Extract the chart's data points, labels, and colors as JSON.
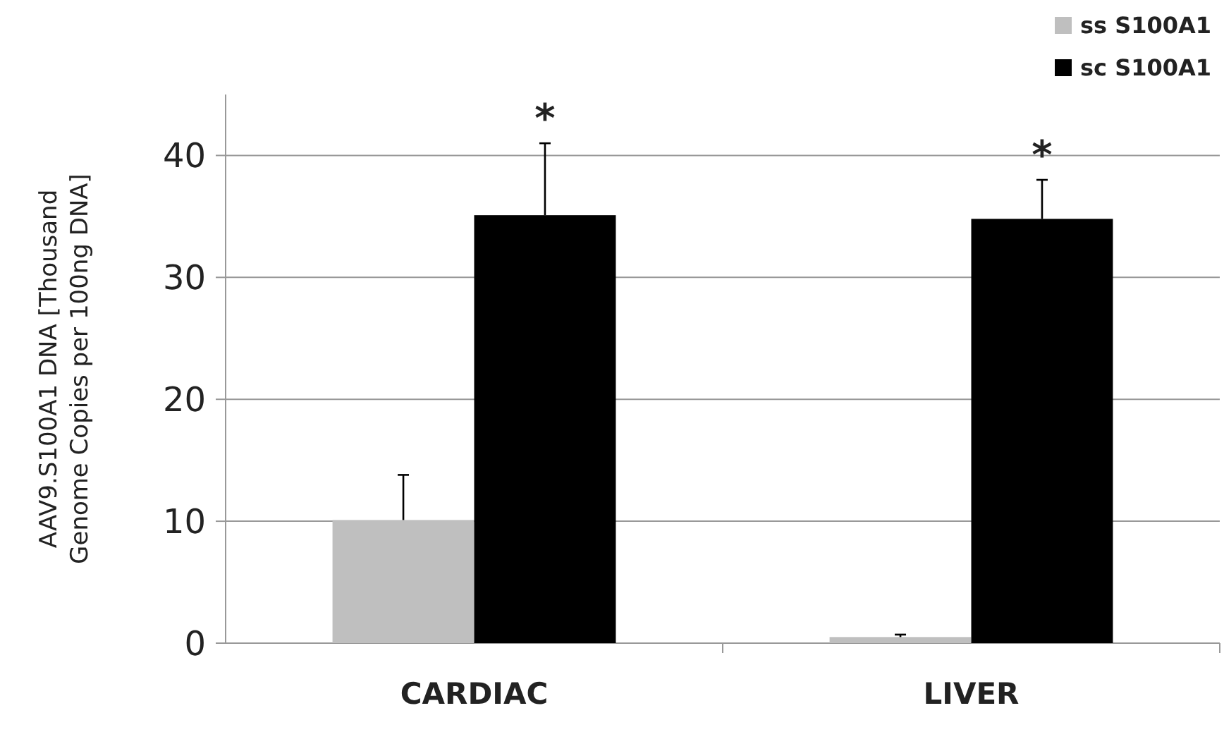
{
  "chart_data": {
    "type": "bar",
    "ylabel": "AAV9.S100A1 DNA [Thousand Genome Copies per 100ng DNA]",
    "categories": [
      "CARDIAC",
      "LIVER"
    ],
    "series": [
      {
        "name": "ss S100A1",
        "color": "#bfbfbf",
        "values": [
          10.1,
          0.5
        ],
        "errors": [
          3.7,
          0.2
        ]
      },
      {
        "name": "sc S100A1",
        "color": "#000000",
        "values": [
          35.1,
          34.8
        ],
        "errors": [
          5.9,
          3.2
        ]
      }
    ],
    "ylim": [
      0,
      45
    ],
    "yticks": [
      0,
      10,
      20,
      30,
      40
    ],
    "grid": "y",
    "legend": "top right",
    "annotations": [
      "*",
      "*"
    ]
  }
}
